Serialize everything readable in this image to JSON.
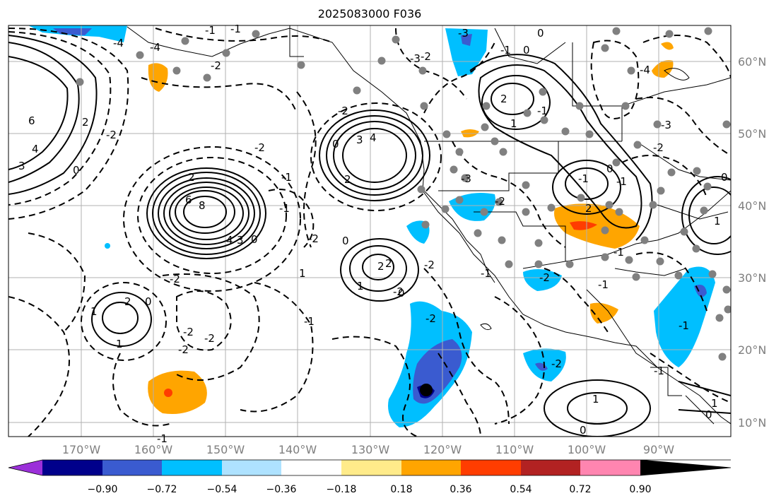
{
  "title": "2025083000 F036",
  "lon_labels": [
    "170°W",
    "160°W",
    "150°W",
    "140°W",
    "130°W",
    "120°W",
    "110°W",
    "100°W",
    "90°W"
  ],
  "lat_labels": [
    "60°N",
    "50°N",
    "40°N",
    "30°N",
    "20°N",
    "10°N"
  ],
  "colorbar": {
    "colors": [
      "#9b30d9",
      "#00008b",
      "#3a5bd0",
      "#00bfff",
      "#aee2ff",
      "#ffffff",
      "#ffeb8a",
      "#ffa500",
      "#ff3d00",
      "#b22222",
      "#ff85b0"
    ],
    "tick_labels": [
      "−0.90",
      "−0.72",
      "−0.54",
      "−0.36",
      "−0.18",
      "0.18",
      "0.36",
      "0.54",
      "0.72",
      "0.90"
    ]
  },
  "contour_labels": [
    "8",
    "6",
    "2",
    "4",
    "3",
    "0",
    "-2",
    "1",
    "-1",
    "2",
    "-2",
    "0",
    "4",
    "3",
    "0",
    "-2",
    "2",
    "0",
    "1",
    "2",
    "0",
    "1",
    "-2",
    "-2",
    "-2",
    "-1",
    "-1",
    "0",
    "-2",
    "-3",
    "0",
    "-1",
    "-1",
    "-3",
    "2",
    "1",
    "-1",
    "-4",
    "-3",
    "-2",
    "6",
    "4",
    "3",
    "2",
    "-2",
    "0",
    "-2",
    "1",
    "0",
    "-1",
    "2",
    "-1",
    "1",
    "0",
    "-1",
    "-2",
    "-4",
    "-1",
    "-2",
    "-3",
    "-2",
    "-2",
    "-1",
    "-1",
    "-2",
    "-2",
    "0",
    "-4",
    "-1",
    "1",
    "0",
    "-2",
    "1",
    "-1",
    "2",
    "-1"
  ]
}
